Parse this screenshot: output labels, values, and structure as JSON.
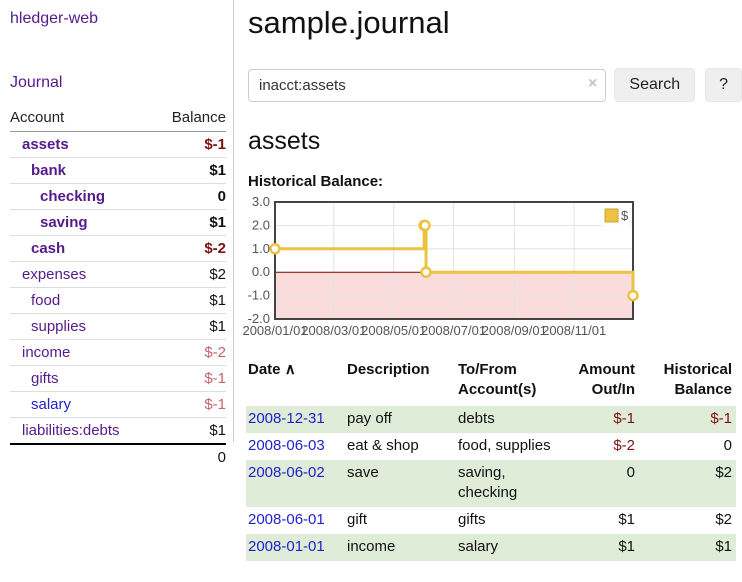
{
  "colors": {
    "purple": "#551a8b",
    "blue": "#2222cc",
    "negative_strong": "#7f1111",
    "negative_weak": "#c4646c",
    "row_shade_green": "#dfecd8",
    "chart_series": "#edc240",
    "chart_marker_fill": "#ffffff",
    "chart_negative_fill": "#fadcdc",
    "chart_zero_line": "#8b0000",
    "chart_grid": "#e3e3e3",
    "chart_border": "#434343",
    "legend_swatch_border": "#c9a63c"
  },
  "sidebar": {
    "app_title": "hledger-web",
    "nav_journal": "Journal",
    "accounts": {
      "header_account": "Account",
      "header_balance": "Balance",
      "rows": [
        {
          "label": "assets",
          "depth": 1,
          "bold": true,
          "balance": "$-1",
          "tone": "negative-strong",
          "link": "purple"
        },
        {
          "label": "bank",
          "depth": 2,
          "bold": true,
          "balance": "$1",
          "tone": "none",
          "link": "purple"
        },
        {
          "label": "checking",
          "depth": 3,
          "bold": true,
          "balance": "0",
          "tone": "none",
          "link": "purple"
        },
        {
          "label": "saving",
          "depth": 3,
          "bold": true,
          "balance": "$1",
          "tone": "none",
          "link": "purple"
        },
        {
          "label": "cash",
          "depth": 2,
          "bold": true,
          "balance": "$-2",
          "tone": "negative-strong",
          "link": "purple"
        },
        {
          "label": "expenses",
          "depth": 1,
          "bold": false,
          "balance": "$2",
          "tone": "none",
          "link": "purple"
        },
        {
          "label": "food",
          "depth": 2,
          "bold": false,
          "balance": "$1",
          "tone": "none",
          "link": "purple"
        },
        {
          "label": "supplies",
          "depth": 2,
          "bold": false,
          "balance": "$1",
          "tone": "none",
          "link": "purple"
        },
        {
          "label": "income",
          "depth": 1,
          "bold": false,
          "balance": "$-2",
          "tone": "negative-weak",
          "link": "purple"
        },
        {
          "label": "gifts",
          "depth": 2,
          "bold": false,
          "balance": "$-1",
          "tone": "negative-weak",
          "link": "purple"
        },
        {
          "label": "salary",
          "depth": 2,
          "bold": false,
          "balance": "$-1",
          "tone": "negative-weak",
          "link": "blue"
        },
        {
          "label": "liabilities:debts",
          "depth": 1,
          "bold": false,
          "balance": "$1",
          "tone": "none",
          "link": "purple"
        }
      ],
      "total": "0"
    }
  },
  "main": {
    "title": "sample.journal",
    "search": {
      "value": "inacct:assets",
      "clear_icon": "×",
      "button_label": "Search",
      "help_label": "?"
    },
    "account_heading": "assets",
    "chart_label": "Historical Balance:",
    "register": {
      "headers": {
        "date": "Date",
        "description": "Description",
        "accounts": "To/From Account(s)",
        "amount": "Amount Out/In",
        "balance": "Historical Balance"
      },
      "sort_icon": "∧",
      "rows": [
        {
          "date": "2008-12-31",
          "description": "pay off",
          "accounts": "debts",
          "amount": "$-1",
          "balance": "$-1",
          "shaded": true
        },
        {
          "date": "2008-06-03",
          "description": "eat & shop",
          "accounts": "food, supplies",
          "amount": "$-2",
          "balance": "0",
          "shaded": false
        },
        {
          "date": "2008-06-02",
          "description": "save",
          "accounts": "saving, checking",
          "amount": "0",
          "balance": "$2",
          "shaded": true
        },
        {
          "date": "2008-06-01",
          "description": "gift",
          "accounts": "gifts",
          "amount": "$1",
          "balance": "$2",
          "shaded": false
        },
        {
          "date": "2008-01-01",
          "description": "income",
          "accounts": "salary",
          "amount": "$1",
          "balance": "$1",
          "shaded": true
        }
      ]
    }
  },
  "chart_data": {
    "type": "line",
    "mode": "steps",
    "title": "Historical Balance",
    "x_range": [
      "2008-01-01",
      "2008-12-31"
    ],
    "ylim": [
      -2,
      3
    ],
    "y_ticks": [
      {
        "value": 3,
        "label": "3.0"
      },
      {
        "value": 2,
        "label": "2.0"
      },
      {
        "value": 1,
        "label": "1.0"
      },
      {
        "value": 0,
        "label": "0.0"
      },
      {
        "value": -1,
        "label": "-1.0"
      },
      {
        "value": -2,
        "label": "-2.0"
      }
    ],
    "x_ticks": [
      {
        "date": "2008-01-01",
        "label": "2008/01/01"
      },
      {
        "date": "2008-03-01",
        "label": "2008/03/01"
      },
      {
        "date": "2008-05-01",
        "label": "2008/05/01"
      },
      {
        "date": "2008-07-01",
        "label": "2008/07/01"
      },
      {
        "date": "2008-09-01",
        "label": "2008/09/01"
      },
      {
        "date": "2008-11-01",
        "label": "2008/11/01"
      }
    ],
    "series": [
      {
        "name": "$",
        "points": [
          {
            "date": "2008-01-01",
            "value": 1
          },
          {
            "date": "2008-06-01",
            "value": 2
          },
          {
            "date": "2008-06-02",
            "value": 2
          },
          {
            "date": "2008-06-03",
            "value": 0
          },
          {
            "date": "2008-12-31",
            "value": -1
          }
        ]
      }
    ],
    "legend": {
      "label": "$",
      "position": "top-right"
    },
    "grid": true,
    "negative_region_shaded": true
  }
}
